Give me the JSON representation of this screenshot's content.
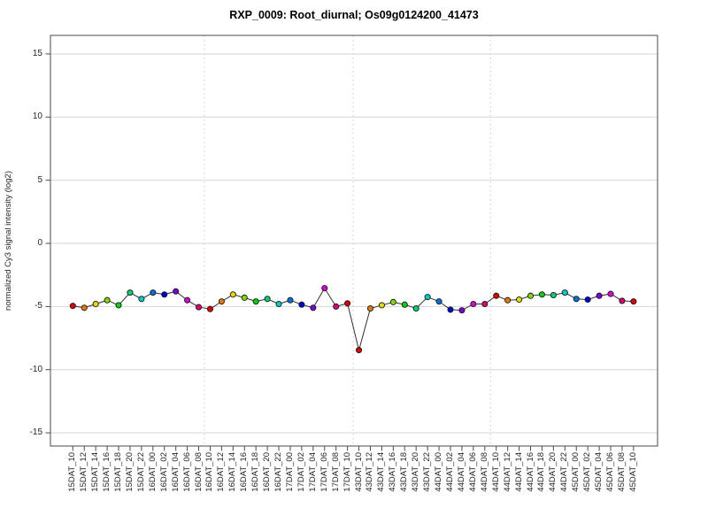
{
  "chart_data": {
    "type": "line",
    "title": "RXP_0009: Root_diurnal; Os09g0124200_41473",
    "ylabel": "normalized Cy3 signal intensity (log2)",
    "xlabel": "",
    "ylim": [
      -16,
      16.5
    ],
    "yticks": [
      -15,
      -10,
      -5,
      0,
      5,
      10,
      15
    ],
    "grid": "horizontal solid lines at every y tick; dotted vertical separators between day blocks",
    "legend": "none",
    "categories": [
      "15DAT_10",
      "15DAT_12",
      "15DAT_14",
      "15DAT_16",
      "15DAT_18",
      "15DAT_20",
      "15DAT_22",
      "16DAT_00",
      "16DAT_02",
      "16DAT_04",
      "16DAT_06",
      "16DAT_08",
      "16DAT_10",
      "16DAT_12",
      "16DAT_14",
      "16DAT_16",
      "16DAT_18",
      "16DAT_20",
      "16DAT_22",
      "17DAT_00",
      "17DAT_02",
      "17DAT_04",
      "17DAT_06",
      "17DAT_08",
      "17DAT_10",
      "43DAT_10",
      "43DAT_12",
      "43DAT_14",
      "43DAT_16",
      "43DAT_18",
      "43DAT_20",
      "43DAT_22",
      "44DAT_00",
      "44DAT_02",
      "44DAT_04",
      "44DAT_06",
      "44DAT_08",
      "44DAT_10",
      "44DAT_12",
      "44DAT_14",
      "44DAT_16",
      "44DAT_18",
      "44DAT_20",
      "44DAT_22",
      "45DAT_00",
      "45DAT_02",
      "45DAT_04",
      "45DAT_06",
      "45DAT_08",
      "45DAT_10"
    ],
    "values": [
      -4.95,
      -5.1,
      -4.8,
      -4.5,
      -4.9,
      -3.9,
      -4.4,
      -3.9,
      -4.05,
      -3.8,
      -4.5,
      -5.05,
      -5.2,
      -4.6,
      -4.05,
      -4.3,
      -4.6,
      -4.4,
      -4.8,
      -4.5,
      -4.85,
      -5.1,
      -3.55,
      -5.0,
      -4.75,
      -8.45,
      -5.15,
      -4.9,
      -4.65,
      -4.85,
      -5.15,
      -4.25,
      -4.6,
      -5.25,
      -5.3,
      -4.8,
      -4.8,
      -4.15,
      -4.5,
      -4.45,
      -4.15,
      -4.05,
      -4.1,
      -3.9,
      -4.4,
      -4.45,
      -4.15,
      -4.0,
      -4.55,
      -4.6
    ],
    "point_color_by_hour": {
      "00": "#0073E0",
      "02": "#0000DD",
      "04": "#7A00E0",
      "06": "#DC00DC",
      "08": "#E00073",
      "10": "#E00000",
      "12": "#E87800",
      "14": "#E8D800",
      "16": "#7EDC00",
      "18": "#00D400",
      "20": "#00D46E",
      "22": "#00CCCC"
    },
    "separators_between": [
      [
        "16DAT_08",
        "16DAT_10"
      ],
      [
        "17DAT_10",
        "43DAT_10"
      ],
      [
        "44DAT_08",
        "44DAT_10"
      ]
    ]
  },
  "styles": {
    "background": "#ffffff",
    "axis_color": "#4a4a4a",
    "grid_color": "#d6d6d6",
    "separator_color": "#c9c9c9",
    "line_color": "#2e2e2e",
    "marker_stroke": "#1a1a1a",
    "text_color": "#262626",
    "title_color": "#000000"
  }
}
